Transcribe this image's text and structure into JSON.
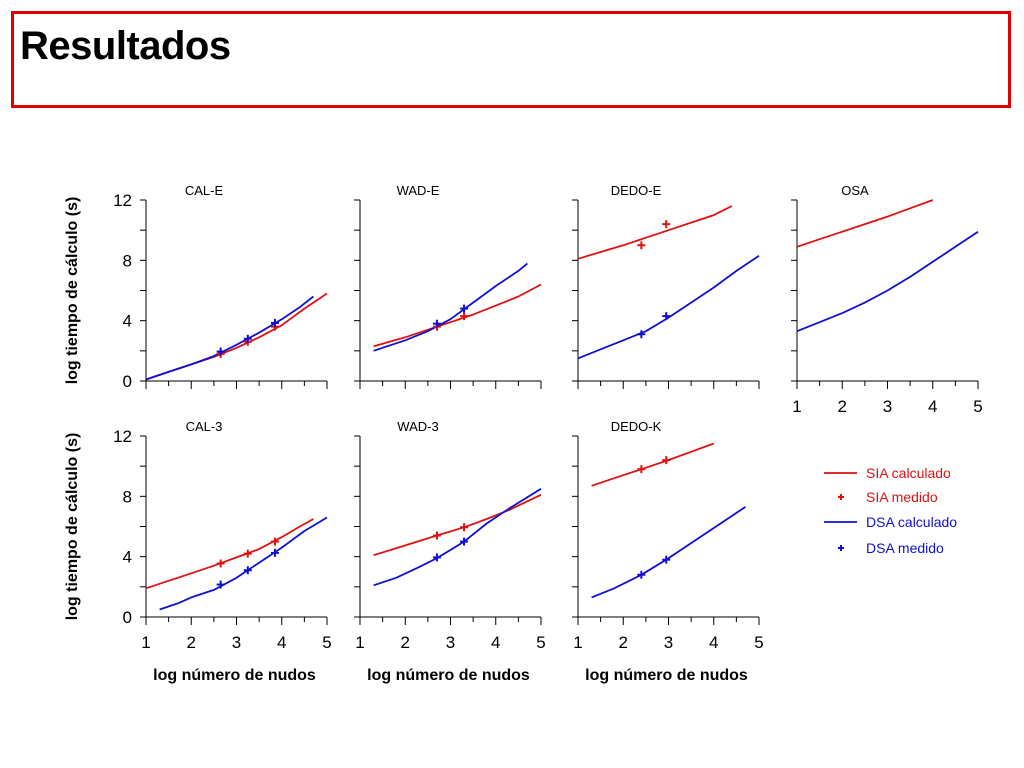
{
  "slide": {
    "title": "Resultados",
    "frame_color": "#e00000"
  },
  "chart_data": {
    "type": "line",
    "xlabel": "log número de nudos",
    "ylabel": "log tiempo de cálculo (s)",
    "xlim": [
      1,
      5
    ],
    "ylim": [
      0,
      12
    ],
    "xticks": [
      "1",
      "2",
      "3",
      "4",
      "5"
    ],
    "yticks": [
      "0",
      "4",
      "8",
      "12"
    ],
    "colors": {
      "SIA": "#e01010",
      "DSA": "#1010d0"
    },
    "legend": {
      "placement": "right-middle",
      "entries": [
        {
          "label": "SIA calculado",
          "series": "SIA",
          "kind": "line"
        },
        {
          "label": "SIA medido",
          "series": "SIA",
          "kind": "marker"
        },
        {
          "label": "DSA calculado",
          "series": "DSA",
          "kind": "line"
        },
        {
          "label": "DSA medido",
          "series": "DSA",
          "kind": "marker"
        }
      ]
    },
    "panels": [
      {
        "title": "CAL-E",
        "row": 0,
        "col": 0,
        "SIA_calc": [
          [
            1,
            0.1
          ],
          [
            1.5,
            0.6
          ],
          [
            2,
            1.1
          ],
          [
            2.5,
            1.6
          ],
          [
            3,
            2.2
          ],
          [
            3.5,
            2.9
          ],
          [
            4,
            3.7
          ],
          [
            4.5,
            4.8
          ],
          [
            5,
            5.8
          ]
        ],
        "SIA_meas": [
          [
            2.65,
            1.8
          ],
          [
            3.25,
            2.6
          ],
          [
            3.85,
            3.6
          ]
        ],
        "DSA_calc": [
          [
            1,
            0.1
          ],
          [
            1.5,
            0.6
          ],
          [
            2,
            1.1
          ],
          [
            2.5,
            1.65
          ],
          [
            3,
            2.4
          ],
          [
            3.5,
            3.2
          ],
          [
            4,
            4.1
          ],
          [
            4.4,
            4.9
          ],
          [
            4.7,
            5.6
          ]
        ],
        "DSA_meas": [
          [
            2.65,
            1.95
          ],
          [
            3.25,
            2.8
          ],
          [
            3.85,
            3.85
          ]
        ]
      },
      {
        "title": "WAD-E",
        "row": 0,
        "col": 1,
        "SIA_calc": [
          [
            1.3,
            2.3
          ],
          [
            2,
            2.9
          ],
          [
            2.5,
            3.4
          ],
          [
            3,
            3.9
          ],
          [
            3.5,
            4.4
          ],
          [
            4,
            5.0
          ],
          [
            4.5,
            5.6
          ],
          [
            5,
            6.4
          ]
        ],
        "SIA_meas": [
          [
            2.7,
            3.6
          ],
          [
            3.3,
            4.3
          ]
        ],
        "DSA_calc": [
          [
            1.3,
            2.0
          ],
          [
            2,
            2.7
          ],
          [
            2.5,
            3.3
          ],
          [
            3,
            4.1
          ],
          [
            3.5,
            5.2
          ],
          [
            4,
            6.3
          ],
          [
            4.5,
            7.3
          ],
          [
            4.7,
            7.8
          ]
        ],
        "DSA_meas": [
          [
            2.7,
            3.8
          ],
          [
            3.3,
            4.8
          ]
        ]
      },
      {
        "title": "DEDO-E",
        "row": 0,
        "col": 2,
        "SIA_calc": [
          [
            1,
            8.1
          ],
          [
            1.5,
            8.55
          ],
          [
            2,
            9.0
          ],
          [
            2.5,
            9.5
          ],
          [
            3,
            10.0
          ],
          [
            3.5,
            10.5
          ],
          [
            4,
            11.0
          ],
          [
            4.4,
            11.6
          ]
        ],
        "SIA_meas": [
          [
            2.4,
            9.0
          ],
          [
            2.95,
            10.4
          ]
        ],
        "DSA_calc": [
          [
            1,
            1.5
          ],
          [
            1.5,
            2.1
          ],
          [
            2,
            2.7
          ],
          [
            2.5,
            3.3
          ],
          [
            3,
            4.2
          ],
          [
            3.5,
            5.2
          ],
          [
            4,
            6.2
          ],
          [
            4.5,
            7.3
          ],
          [
            5,
            8.3
          ]
        ],
        "DSA_meas": [
          [
            2.4,
            3.1
          ],
          [
            2.95,
            4.3
          ]
        ]
      },
      {
        "title": "OSA",
        "row": 0,
        "col": 3,
        "SIA_calc": [
          [
            1,
            8.9
          ],
          [
            1.5,
            9.4
          ],
          [
            2,
            9.9
          ],
          [
            2.5,
            10.4
          ],
          [
            3,
            10.9
          ],
          [
            3.5,
            11.45
          ],
          [
            4,
            12.0
          ]
        ],
        "SIA_meas": [],
        "DSA_calc": [
          [
            1,
            3.3
          ],
          [
            1.5,
            3.9
          ],
          [
            2,
            4.5
          ],
          [
            2.5,
            5.2
          ],
          [
            3,
            6.0
          ],
          [
            3.5,
            6.9
          ],
          [
            4,
            7.9
          ],
          [
            4.5,
            8.9
          ],
          [
            5,
            9.9
          ]
        ],
        "DSA_meas": []
      },
      {
        "title": "CAL-3",
        "row": 1,
        "col": 0,
        "SIA_calc": [
          [
            1,
            1.9
          ],
          [
            1.5,
            2.4
          ],
          [
            2,
            2.9
          ],
          [
            2.5,
            3.4
          ],
          [
            3,
            3.95
          ],
          [
            3.5,
            4.5
          ],
          [
            4,
            5.3
          ],
          [
            4.4,
            6.0
          ],
          [
            4.7,
            6.5
          ]
        ],
        "SIA_meas": [
          [
            2.65,
            3.55
          ],
          [
            3.25,
            4.2
          ],
          [
            3.85,
            5.0
          ]
        ],
        "DSA_calc": [
          [
            1.3,
            0.5
          ],
          [
            1.7,
            0.9
          ],
          [
            2,
            1.3
          ],
          [
            2.5,
            1.8
          ],
          [
            3,
            2.6
          ],
          [
            3.5,
            3.6
          ],
          [
            4,
            4.6
          ],
          [
            4.5,
            5.7
          ],
          [
            5,
            6.6
          ]
        ],
        "DSA_meas": [
          [
            2.65,
            2.15
          ],
          [
            3.25,
            3.1
          ],
          [
            3.85,
            4.25
          ]
        ]
      },
      {
        "title": "WAD-3",
        "row": 1,
        "col": 1,
        "SIA_calc": [
          [
            1.3,
            4.1
          ],
          [
            2,
            4.75
          ],
          [
            2.7,
            5.4
          ],
          [
            3.3,
            5.95
          ],
          [
            3.8,
            6.5
          ],
          [
            4.3,
            7.1
          ],
          [
            5,
            8.1
          ]
        ],
        "SIA_meas": [
          [
            2.7,
            5.4
          ],
          [
            3.3,
            5.95
          ]
        ],
        "DSA_calc": [
          [
            1.3,
            2.1
          ],
          [
            1.8,
            2.6
          ],
          [
            2.3,
            3.3
          ],
          [
            2.7,
            3.9
          ],
          [
            3.3,
            5.0
          ],
          [
            3.8,
            6.2
          ],
          [
            4.3,
            7.2
          ],
          [
            5,
            8.5
          ]
        ],
        "DSA_meas": [
          [
            2.7,
            3.95
          ],
          [
            3.3,
            5.0
          ]
        ]
      },
      {
        "title": "DEDO-K",
        "row": 1,
        "col": 2,
        "SIA_calc": [
          [
            1.3,
            8.7
          ],
          [
            1.8,
            9.2
          ],
          [
            2.4,
            9.8
          ],
          [
            2.95,
            10.35
          ],
          [
            3.5,
            10.95
          ],
          [
            4,
            11.5
          ]
        ],
        "SIA_meas": [
          [
            2.4,
            9.8
          ],
          [
            2.95,
            10.4
          ]
        ],
        "DSA_calc": [
          [
            1.3,
            1.3
          ],
          [
            1.8,
            1.9
          ],
          [
            2.4,
            2.8
          ],
          [
            2.95,
            3.8
          ],
          [
            3.5,
            4.9
          ],
          [
            4.1,
            6.1
          ],
          [
            4.7,
            7.3
          ]
        ],
        "DSA_meas": [
          [
            2.4,
            2.8
          ],
          [
            2.95,
            3.8
          ]
        ]
      }
    ]
  }
}
